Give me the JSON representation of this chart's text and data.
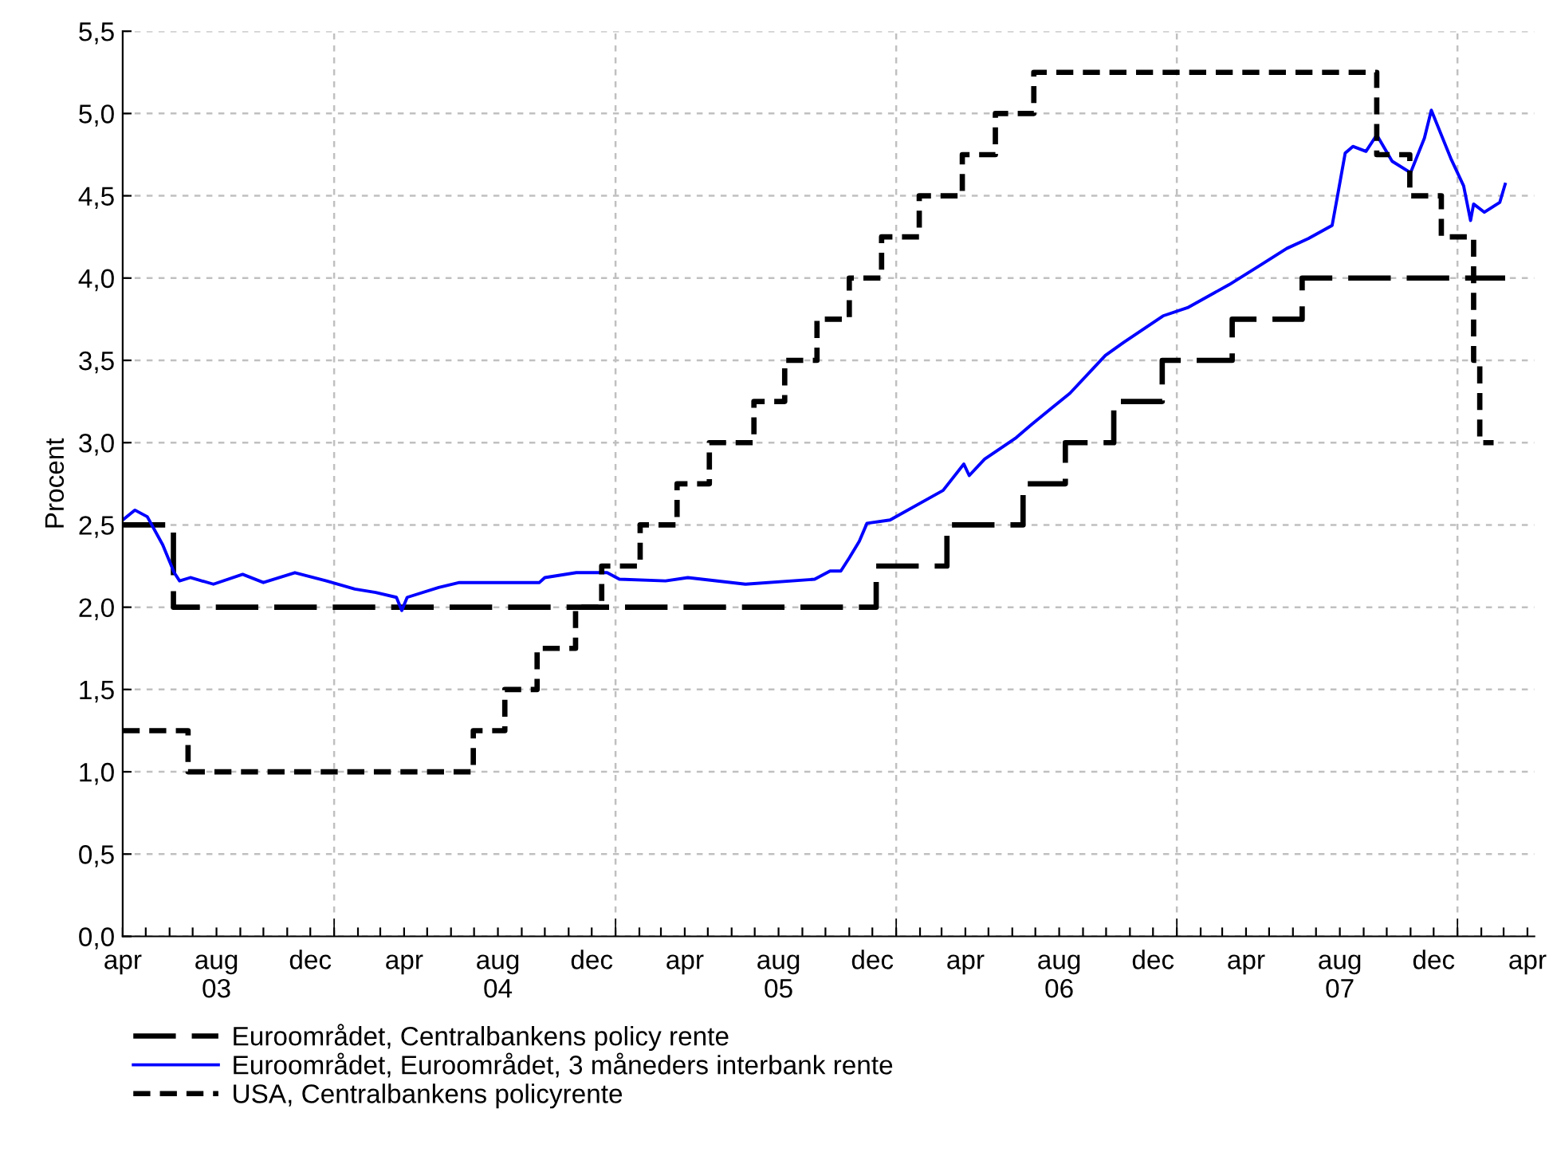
{
  "chart_data": {
    "type": "line",
    "ylabel": "Procent",
    "legend": "bottom",
    "grid": true,
    "xlim": [
      "2003-04-01",
      "2008-04-10"
    ],
    "xticks": [
      {
        "value": "2003-04-01",
        "label": "apr"
      },
      {
        "value": "2003-08-01",
        "label": "aug\n03"
      },
      {
        "value": "2003-12-01",
        "label": "dec"
      },
      {
        "value": "2004-01-01",
        "label": null
      },
      {
        "value": "2004-04-01",
        "label": "apr"
      },
      {
        "value": "2004-08-01",
        "label": "aug\n04"
      },
      {
        "value": "2004-12-01",
        "label": "dec"
      },
      {
        "value": "2005-01-01",
        "label": null
      },
      {
        "value": "2005-04-01",
        "label": "apr"
      },
      {
        "value": "2005-08-01",
        "label": "aug\n05"
      },
      {
        "value": "2005-12-01",
        "label": "dec"
      },
      {
        "value": "2006-01-01",
        "label": null
      },
      {
        "value": "2006-04-01",
        "label": "apr"
      },
      {
        "value": "2006-08-01",
        "label": "aug\n06"
      },
      {
        "value": "2006-12-01",
        "label": "dec"
      },
      {
        "value": "2007-01-01",
        "label": null
      },
      {
        "value": "2007-04-01",
        "label": "apr"
      },
      {
        "value": "2007-08-01",
        "label": "aug\n07"
      },
      {
        "value": "2007-12-01",
        "label": "dec"
      },
      {
        "value": "2008-01-01",
        "label": null
      },
      {
        "value": "2008-04-01",
        "label": "apr"
      }
    ],
    "ylim": [
      0,
      5.5
    ],
    "yticks": [
      {
        "value": 0,
        "label": "0,0"
      },
      {
        "value": 0.5,
        "label": "0,5"
      },
      {
        "value": 1,
        "label": "1,0"
      },
      {
        "value": 1.5,
        "label": "1,5"
      },
      {
        "value": 2,
        "label": "2,0"
      },
      {
        "value": 2.5,
        "label": "2,5"
      },
      {
        "value": 3,
        "label": "3,0"
      },
      {
        "value": 3.5,
        "label": "3,5"
      },
      {
        "value": 4,
        "label": "4,0"
      },
      {
        "value": 4.5,
        "label": "4,5"
      },
      {
        "value": 5,
        "label": "5,0"
      },
      {
        "value": 5.5,
        "label": "5,5"
      }
    ],
    "series": [
      {
        "name": "Euroområdet, Centralbankens policy rente",
        "type": "step",
        "color": "#000000",
        "line_style": "dashed",
        "x": [
          "2003-04-01",
          "2003-06-06",
          "2005-12-06",
          "2006-03-08",
          "2006-06-15",
          "2006-08-09",
          "2006-10-11",
          "2006-12-13",
          "2007-03-14",
          "2007-06-13",
          "2008-03-03"
        ],
        "values": [
          2.5,
          2.0,
          2.25,
          2.5,
          2.75,
          3.0,
          3.25,
          3.5,
          3.75,
          4.0,
          4.0
        ]
      },
      {
        "name": "Euroområdet, Euroområdet, 3 måneders interbank rente",
        "color": "#0000ff",
        "line_style": "solid",
        "x": [
          "2003-04-01",
          "2003-04-17",
          "2003-05-03",
          "2003-05-23",
          "2003-06-07",
          "2003-06-14",
          "2003-06-28",
          "2003-07-28",
          "2003-09-04",
          "2003-10-01",
          "2003-11-11",
          "2003-12-22",
          "2004-01-28",
          "2004-02-24",
          "2004-03-22",
          "2004-03-29",
          "2004-04-05",
          "2004-05-16",
          "2004-06-12",
          "2004-09-24",
          "2004-10-01",
          "2004-11-11",
          "2004-12-21",
          "2005-01-06",
          "2005-03-07",
          "2005-04-05",
          "2005-06-19",
          "2005-09-17",
          "2005-10-07",
          "2005-10-21",
          "2005-11-01",
          "2005-11-14",
          "2005-11-24",
          "2005-12-24",
          "2006-03-03",
          "2006-03-30",
          "2006-04-06",
          "2006-04-26",
          "2006-06-06",
          "2006-06-26",
          "2006-07-30",
          "2006-08-15",
          "2006-09-30",
          "2006-10-24",
          "2006-12-14",
          "2007-01-15",
          "2007-03-10",
          "2007-04-20",
          "2007-05-24",
          "2007-06-21",
          "2007-07-22",
          "2007-07-29",
          "2007-08-08",
          "2007-08-18",
          "2007-09-04",
          "2007-09-18",
          "2007-10-08",
          "2007-11-01",
          "2007-11-19",
          "2007-11-28",
          "2007-12-24",
          "2008-01-09",
          "2008-01-18",
          "2008-01-22",
          "2008-02-05",
          "2008-02-25",
          "2008-03-03"
        ],
        "values": [
          2.53,
          2.59,
          2.55,
          2.38,
          2.21,
          2.16,
          2.18,
          2.14,
          2.2,
          2.15,
          2.21,
          2.16,
          2.11,
          2.09,
          2.06,
          1.98,
          2.06,
          2.12,
          2.15,
          2.15,
          2.18,
          2.21,
          2.21,
          2.17,
          2.16,
          2.18,
          2.14,
          2.17,
          2.22,
          2.22,
          2.3,
          2.4,
          2.51,
          2.53,
          2.71,
          2.87,
          2.8,
          2.9,
          3.03,
          3.11,
          3.24,
          3.3,
          3.53,
          3.61,
          3.77,
          3.82,
          3.96,
          4.08,
          4.18,
          4.24,
          4.32,
          4.5,
          4.76,
          4.8,
          4.77,
          4.87,
          4.71,
          4.64,
          4.85,
          5.02,
          4.72,
          4.56,
          4.35,
          4.45,
          4.4,
          4.46,
          4.57
        ]
      },
      {
        "name": "USA, Centralbankens policyrente",
        "type": "step",
        "color": "#000000",
        "line_style": "dotted",
        "x": [
          "2003-04-01",
          "2003-06-25",
          "2004-06-30",
          "2004-08-10",
          "2004-09-21",
          "2004-11-10",
          "2004-12-14",
          "2005-02-02",
          "2005-03-22",
          "2005-05-03",
          "2005-06-30",
          "2005-08-09",
          "2005-09-20",
          "2005-11-01",
          "2005-12-13",
          "2006-01-31",
          "2006-03-28",
          "2006-05-10",
          "2006-06-29",
          "2007-09-18",
          "2007-10-31",
          "2007-12-11",
          "2008-01-22",
          "2008-01-30",
          "2008-02-17"
        ],
        "values": [
          1.25,
          1.0,
          1.25,
          1.5,
          1.75,
          2.0,
          2.25,
          2.5,
          2.75,
          3.0,
          3.25,
          3.5,
          3.75,
          4.0,
          4.25,
          4.5,
          4.75,
          5.0,
          5.25,
          4.75,
          4.5,
          4.25,
          3.5,
          3.0,
          3.0
        ]
      }
    ]
  }
}
